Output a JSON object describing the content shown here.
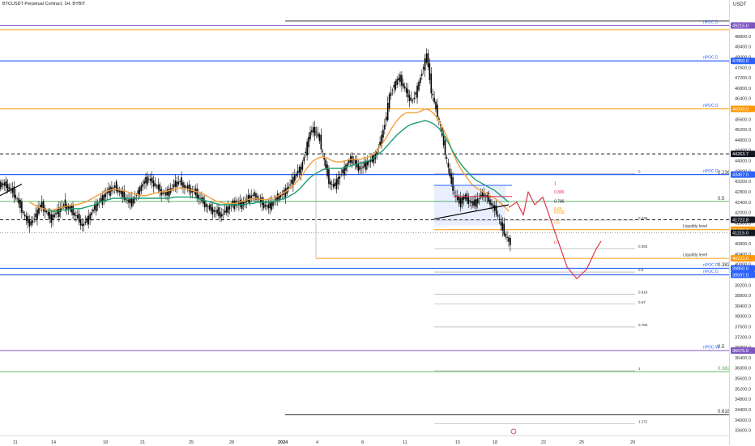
{
  "header": {
    "symbol": "BTCUSDT Perpetual Contract, 1H, BYBIT",
    "currency": "USDT"
  },
  "colors": {
    "candle": "#000000",
    "orange_ma": "#f2a03a",
    "green_ma": "#1a9e6e",
    "blue_line": "#2962ff",
    "orange_line": "#ff9800",
    "purple_line": "#7e57c2",
    "red_path": "#e0364b",
    "dark_badge": "#131722"
  },
  "chart_data": {
    "type": "line",
    "title": "",
    "symbol": "BTCUSDT",
    "timeframe": "1H",
    "exchange": "BYBIT",
    "ylim": [
      33400,
      49700
    ],
    "price_ticks": [
      "49200.0",
      "48800.0",
      "48400.0",
      "48000.0",
      "47600.0",
      "47200.0",
      "46800.0",
      "46400.0",
      "46000.0",
      "45600.0",
      "45200.0",
      "44800.0",
      "44400.0",
      "44000.0",
      "43600.0",
      "43200.0",
      "42800.0",
      "42400.0",
      "42000.0",
      "41600.0",
      "41200.0",
      "40800.0",
      "40400.0",
      "40000.0",
      "39600.0",
      "39200.0",
      "38800.0",
      "38400.0",
      "38000.0",
      "37600.0",
      "37200.0",
      "36800.0",
      "36400.0",
      "36000.0",
      "35600.0",
      "35200.0",
      "34800.0",
      "34400.0",
      "34000.0",
      "33600.0"
    ],
    "date_labels": [
      "11",
      "14",
      "18",
      "21",
      "25",
      "28",
      "2024",
      "4",
      "8",
      "11",
      "15",
      "18",
      "22",
      "25",
      "29"
    ],
    "closes": [
      43100,
      43000,
      42800,
      42500,
      42100,
      41700,
      41600,
      41900,
      42300,
      42100,
      41800,
      41900,
      42100,
      42300,
      42200,
      42000,
      41800,
      41500,
      41700,
      42000,
      42300,
      42500,
      42700,
      42900,
      43000,
      42800,
      42600,
      42400,
      42500,
      42800,
      43100,
      43300,
      43200,
      43000,
      42800,
      42700,
      42900,
      43100,
      43200,
      43000,
      42900,
      42800,
      42600,
      42400,
      42200,
      42100,
      42000,
      41900,
      42100,
      42300,
      42400,
      42300,
      42400,
      42600,
      42700,
      42500,
      42300,
      42200,
      42400,
      42600,
      42700,
      42900,
      43200,
      43500,
      43700,
      44400,
      45100,
      45200,
      44800,
      44000,
      43200,
      43000,
      43300,
      43600,
      43900,
      44100,
      43800,
      43700,
      43900,
      44000,
      44200,
      44700,
      45400,
      46500,
      46900,
      47200,
      46900,
      46500,
      46300,
      46800,
      47400,
      48100,
      46700,
      46000,
      45300,
      44300,
      43400,
      42700,
      42400,
      42600,
      42500,
      42300,
      42500,
      42700,
      42600,
      42300,
      42000,
      41500,
      41100,
      40800
    ],
    "ma_orange": [
      null,
      null,
      null,
      null,
      null,
      null,
      42400,
      42300,
      42200,
      42150,
      42100,
      42100,
      42150,
      42200,
      42250,
      42300,
      42300,
      42350,
      42400,
      42500,
      42600,
      42700,
      42800,
      42850,
      42900,
      42900,
      42850,
      42800,
      42750,
      42700,
      42650,
      42650,
      42700,
      42750,
      42800,
      42800,
      42850,
      42900,
      42950,
      42950,
      42900,
      42850,
      42800,
      42750,
      42650,
      42550,
      42450,
      42400,
      42350,
      42350,
      42350,
      42400,
      42450,
      42500,
      42550,
      42550,
      42500,
      42500,
      42550,
      42600,
      42700,
      42800,
      42950,
      43100,
      43300,
      43550,
      43800,
      44000,
      44100,
      44150,
      44100,
      44000,
      43950,
      43950,
      44000,
      44050,
      44050,
      44050,
      44100,
      44150,
      44250,
      44450,
      44700,
      45000,
      45300,
      45550,
      45750,
      45850,
      45850,
      45850,
      45900,
      46000,
      45950,
      45800,
      45550,
      45200,
      44800,
      44300,
      43900,
      43600,
      43350,
      43100,
      42950,
      42850,
      42750,
      42650,
      42550,
      42400,
      42250,
      42050
    ],
    "ma_green": [
      null,
      null,
      null,
      null,
      null,
      null,
      null,
      null,
      null,
      null,
      42100,
      42050,
      42050,
      42100,
      42100,
      42150,
      42150,
      42150,
      42200,
      42250,
      42300,
      42400,
      42450,
      42500,
      42550,
      42550,
      42550,
      42550,
      42550,
      42550,
      42550,
      42550,
      42550,
      42550,
      42550,
      42550,
      42550,
      42600,
      42600,
      42600,
      42600,
      42600,
      42550,
      42500,
      42450,
      42400,
      42350,
      42300,
      42300,
      42300,
      42300,
      42300,
      42300,
      42350,
      42350,
      42400,
      42400,
      42400,
      42400,
      42450,
      42500,
      42550,
      42650,
      42750,
      42900,
      43100,
      43300,
      43450,
      43550,
      43650,
      43700,
      43700,
      43700,
      43700,
      43750,
      43800,
      43850,
      43900,
      43950,
      44000,
      44100,
      44250,
      44400,
      44600,
      44800,
      45000,
      45150,
      45300,
      45400,
      45450,
      45500,
      45550,
      45500,
      45400,
      45250,
      45000,
      44700,
      44350,
      44050,
      43800,
      43600,
      43400,
      43250,
      43150,
      43050,
      42950,
      42850,
      42700,
      42550,
      42400
    ],
    "horizontal_levels": [
      {
        "price": 49390,
        "color": "#222222",
        "label": "0"
      },
      {
        "price": 49215,
        "color": "#7e57c2",
        "label": "49215.0"
      },
      {
        "price": 49050,
        "color": "#ff9800",
        "label": ""
      },
      {
        "price": 47850,
        "color": "#2962ff",
        "label": "47850.0"
      },
      {
        "price": 46000,
        "color": "#ff9800",
        "label": "46000.0"
      },
      {
        "price": 44263,
        "color": "#222222",
        "label": "44263.7"
      },
      {
        "price": 43467,
        "color": "#2962ff",
        "label": "43467.0"
      },
      {
        "price": 42430,
        "color": "#4caf50",
        "label": ""
      },
      {
        "price": 41722,
        "color": "#222222",
        "label": "41722.8"
      },
      {
        "price": 41339,
        "color": "#ff9800",
        "label": "41339.0"
      },
      {
        "price": 41215,
        "color": "#888888",
        "label": "41215.0"
      },
      {
        "price": 40233,
        "color": "#ff9800",
        "label": "40233.0"
      },
      {
        "price": 39850,
        "color": "#2962ff",
        "label": "39850.0"
      },
      {
        "price": 39597,
        "color": "#2962ff",
        "label": "39597.0"
      },
      {
        "price": 36675,
        "color": "#7e57c2",
        "label": "36675.0"
      },
      {
        "price": 35860,
        "color": "#4caf50",
        "label": ""
      },
      {
        "price": 34200,
        "color": "#222222",
        "label": ""
      }
    ],
    "axis_badges": [
      {
        "price": 49215,
        "text": "49215.0",
        "color": "#7e57c2"
      },
      {
        "price": 47850,
        "text": "47850.0",
        "color": "#2962ff"
      },
      {
        "price": 46000,
        "text": "46000.0",
        "color": "#ff9800"
      },
      {
        "price": 44263,
        "text": "44263.7",
        "color": "#131722"
      },
      {
        "price": 43467,
        "text": "43467.0",
        "color": "#2962ff"
      },
      {
        "price": 41722,
        "text": "41722.8",
        "color": "#131722"
      },
      {
        "price": 41339,
        "text": "41339.0",
        "color": "#ff9800"
      },
      {
        "price": 41215,
        "text": "41215.0",
        "color": "#131722"
      },
      {
        "price": 40233,
        "text": "40233.0",
        "color": "#ff9800"
      },
      {
        "price": 39850,
        "text": "39850.0",
        "color": "#2962ff"
      },
      {
        "price": 39597,
        "text": "39597.0",
        "color": "#2962ff"
      },
      {
        "price": 36675,
        "text": "36675.0",
        "color": "#7e57c2"
      }
    ],
    "annotations": [
      {
        "text": "nPOC D",
        "price": 49300,
        "color": "#2962ff"
      },
      {
        "text": "nPOC D",
        "price": 47930,
        "color": "#2962ff"
      },
      {
        "text": "nPOC D",
        "price": 46080,
        "color": "#2962ff"
      },
      {
        "text": "nPOC D",
        "price": 43550,
        "color": "#2962ff"
      },
      {
        "text": "Liquidity level",
        "price": 41420,
        "color": "#333333"
      },
      {
        "text": "Liquidity level",
        "price": 40310,
        "color": "#333333"
      },
      {
        "text": "nPOC D",
        "price": 39930,
        "color": "#2962ff"
      },
      {
        "text": "nPOC D",
        "price": 39670,
        "color": "#2962ff"
      },
      {
        "text": "nPOC W",
        "price": 36760,
        "color": "#2962ff"
      }
    ],
    "fib_right_labels": [
      {
        "text": "0.236",
        "price": 43480
      },
      {
        "text": "0.5",
        "price": 42480
      },
      {
        "text": "0.382",
        "price": 39920
      },
      {
        "text": "0.5",
        "price": 36780
      },
      {
        "text": "0.382",
        "price": 35930
      },
      {
        "text": "0.618",
        "price": 34280
      }
    ],
    "fib_mid_labels": [
      {
        "text": "0",
        "price": 43600
      },
      {
        "text": "0.236",
        "price": 41800
      },
      {
        "text": "0.382",
        "price": 40700
      },
      {
        "text": "0.5",
        "price": 39800
      },
      {
        "text": "0.618",
        "price": 38950
      },
      {
        "text": "0.67",
        "price": 38560
      },
      {
        "text": "0.786",
        "price": 37680
      },
      {
        "text": "1",
        "price": 35990
      },
      {
        "text": "1.272",
        "price": 33950
      }
    ],
    "fib_small_labels": [
      {
        "text": "1",
        "price": 43060,
        "color": "#e0364b"
      },
      {
        "text": "0.886",
        "price": 42740,
        "color": "#e0364b"
      },
      {
        "text": "0.786",
        "price": 42370,
        "color": "#131722"
      },
      {
        "text": "0.65",
        "price": 42080,
        "color": "#ff9800"
      },
      {
        "text": "0.618",
        "price": 41950,
        "color": "#ff9800"
      },
      {
        "text": "0.5",
        "price": 41570,
        "color": "#ff9800"
      },
      {
        "text": "0",
        "price": 40790,
        "color": "#e0364b"
      }
    ],
    "projection_path": [
      {
        "dx": 0,
        "price": 42200
      },
      {
        "dx": 10,
        "price": 42400
      },
      {
        "dx": 18,
        "price": 41900
      },
      {
        "dx": 24,
        "price": 42800
      },
      {
        "dx": 32,
        "price": 42300
      },
      {
        "dx": 42,
        "price": 42600
      },
      {
        "dx": 52,
        "price": 41700
      },
      {
        "dx": 62,
        "price": 40800
      },
      {
        "dx": 72,
        "price": 39900
      },
      {
        "dx": 84,
        "price": 39450
      },
      {
        "dx": 96,
        "price": 39800
      },
      {
        "dx": 108,
        "price": 40600
      },
      {
        "dx": 114,
        "price": 40900
      }
    ]
  }
}
